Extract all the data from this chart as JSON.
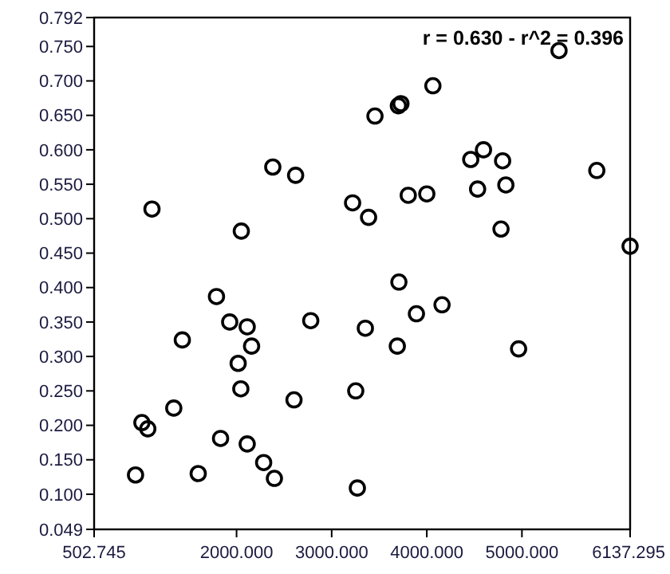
{
  "chart_data": {
    "type": "scatter",
    "marker": "circle",
    "grid": false,
    "annotations": [
      "r = 0.630 - r^2 = 0.396"
    ],
    "xlim": [
      502.745,
      6137.295
    ],
    "xticks": [
      {
        "value": 502.745,
        "label": "502.745"
      },
      {
        "value": 2000,
        "label": "2000.000"
      },
      {
        "value": 3000,
        "label": "3000.000"
      },
      {
        "value": 4000,
        "label": "4000.000"
      },
      {
        "value": 5000,
        "label": "5000.000"
      },
      {
        "value": 6137.295,
        "label": "6137.295"
      }
    ],
    "ylim": [
      0.049,
      0.792
    ],
    "yticks": [
      {
        "value": 0.049,
        "label": "0.049"
      },
      {
        "value": 0.1,
        "label": "0.100"
      },
      {
        "value": 0.15,
        "label": "0.150"
      },
      {
        "value": 0.2,
        "label": "0.200"
      },
      {
        "value": 0.25,
        "label": "0.250"
      },
      {
        "value": 0.3,
        "label": "0.300"
      },
      {
        "value": 0.35,
        "label": "0.350"
      },
      {
        "value": 0.4,
        "label": "0.400"
      },
      {
        "value": 0.45,
        "label": "0.450"
      },
      {
        "value": 0.5,
        "label": "0.500"
      },
      {
        "value": 0.55,
        "label": "0.550"
      },
      {
        "value": 0.6,
        "label": "0.600"
      },
      {
        "value": 0.65,
        "label": "0.650"
      },
      {
        "value": 0.7,
        "label": "0.700"
      },
      {
        "value": 0.75,
        "label": "0.750"
      },
      {
        "value": 0.792,
        "label": "0.792"
      }
    ],
    "series": [
      {
        "color": "#000000",
        "x": [
          938,
          1005,
          1067,
          1340,
          1430,
          1597,
          1789,
          1832,
          1928,
          2017,
          2045,
          2112,
          2112,
          2158,
          2285,
          2398,
          2604,
          2780,
          3707,
          4160,
          3891,
          3354,
          3690,
          4965,
          3253,
          3270,
          6137,
          1111,
          2050,
          2381,
          2621,
          5390,
          4064,
          3728,
          3701,
          3455,
          4596,
          4462,
          4797,
          5787,
          4831,
          4534,
          4000,
          3805,
          3220,
          3388,
          4780
        ],
        "values": [
          0.128,
          0.204,
          0.195,
          0.225,
          0.324,
          0.13,
          0.387,
          0.181,
          0.35,
          0.29,
          0.253,
          0.343,
          0.173,
          0.315,
          0.146,
          0.123,
          0.237,
          0.352,
          0.408,
          0.375,
          0.362,
          0.341,
          0.315,
          0.311,
          0.25,
          0.109,
          0.46,
          0.514,
          0.482,
          0.575,
          0.563,
          0.744,
          0.693,
          0.667,
          0.664,
          0.649,
          0.6,
          0.586,
          0.584,
          0.57,
          0.549,
          0.543,
          0.536,
          0.534,
          0.523,
          0.502,
          0.485
        ]
      }
    ]
  }
}
